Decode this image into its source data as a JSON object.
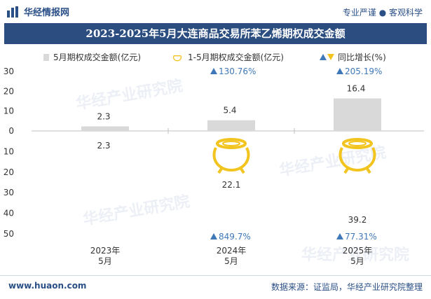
{
  "header": {
    "brand": "华经情报网",
    "slogan": "专业严谨 ● 客观科学"
  },
  "footer": {
    "site": "www.huaon.com",
    "source": "数据来源：证监局，华经产业研究院整理"
  },
  "watermark": "华经产业研究院",
  "colors": {
    "bar": "#d9d9d9",
    "arrow": "#3e78b8",
    "pot": "#f2c41f",
    "title_bg": "#2b4d80"
  },
  "icons": {
    "logo": "bar-logo-icon",
    "increase": "triangle-up-icon",
    "decrease": "triangle-down-icon",
    "cumulative": "gold-pot-icon"
  },
  "chart_data": {
    "type": "bar",
    "title": "2023-2025年5月大连商品交易所苯乙烯期权成交金额",
    "categories": [
      "2023年\n5月",
      "2024年\n5月",
      "2025年\n5月"
    ],
    "legend": [
      "5月期权成交金额(亿元)",
      "1-5月期权成交金额(亿元)",
      "同比增长(%)"
    ],
    "legend_position": "top",
    "top_axis": {
      "ticks": [
        "30",
        "20",
        "10",
        "0"
      ],
      "range": [
        0,
        30
      ]
    },
    "bottom_axis": {
      "ticks": [
        "10",
        "20",
        "30",
        "40",
        "50"
      ],
      "range": [
        0,
        50
      ]
    },
    "series": [
      {
        "name": "5月期权成交金额(亿元)",
        "values": [
          2.3,
          5.4,
          16.4
        ],
        "labels": [
          "2.3",
          "5.4",
          "16.4"
        ],
        "growth": [
          null,
          "130.76%",
          "205.19%"
        ]
      },
      {
        "name": "1-5月期权成交金额(亿元)",
        "values": [
          2.3,
          22.1,
          39.2
        ],
        "labels": [
          "2.3",
          "22.1",
          "39.2"
        ],
        "growth": [
          null,
          "849.7%",
          "77.31%"
        ]
      }
    ],
    "grid": false
  }
}
